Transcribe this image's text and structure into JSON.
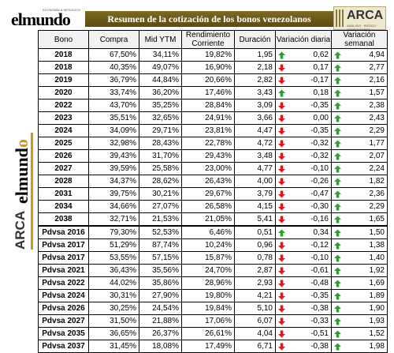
{
  "header": {
    "logo_left": "elmundo",
    "logo_left_sub": "ECONOMÍA & NEGOCIOS",
    "title": "Resumen de la cotización de los bonos venezolanos",
    "logo_right": "ARCA",
    "logo_right_sub": "ANÁLISIS · RIESGO · CONSULTORES"
  },
  "side_logo": {
    "arca": "ARCA",
    "mundo_prefix": "elmund",
    "mundo_o": "o"
  },
  "columns": {
    "bono": "Bono",
    "compra": "Compra",
    "mid_ytm": "Mid YTM",
    "rendimiento": "Rendimiento Corriente",
    "duracion": "Duración",
    "variacion_diaria": "Variación diaria",
    "variacion_semanal": "Variación semanal"
  },
  "colors": {
    "up": "#2aa12a",
    "down": "#d81c1c",
    "banner": "#6b5a18",
    "accent": "#c69a1a"
  },
  "rows": [
    {
      "bono": "2018",
      "compra": "67,50%",
      "mid": "34,11%",
      "rend": "19,82%",
      "dur": "1,95",
      "dia": "0,62",
      "dia_dir": "up",
      "sem": "4,94",
      "sem_dir": "up"
    },
    {
      "bono": "2018",
      "compra": "40,35%",
      "mid": "49,07%",
      "rend": "16,90%",
      "dur": "2,18",
      "dia": "0,17",
      "dia_dir": "down",
      "sem": "2,77",
      "sem_dir": "up"
    },
    {
      "bono": "2019",
      "compra": "36,79%",
      "mid": "44,84%",
      "rend": "20,66%",
      "dur": "2,82",
      "dia": "-0,17",
      "dia_dir": "down",
      "sem": "2,16",
      "sem_dir": "up"
    },
    {
      "bono": "2020",
      "compra": "33,74%",
      "mid": "36,20%",
      "rend": "17,46%",
      "dur": "3,43",
      "dia": "0,18",
      "dia_dir": "up",
      "sem": "1,57",
      "sem_dir": "up"
    },
    {
      "bono": "2022",
      "compra": "43,70%",
      "mid": "35,25%",
      "rend": "28,84%",
      "dur": "3,09",
      "dia": "-0,35",
      "dia_dir": "down",
      "sem": "2,38",
      "sem_dir": "up"
    },
    {
      "bono": "2023",
      "compra": "35,51%",
      "mid": "32,65%",
      "rend": "24,91%",
      "dur": "3,66",
      "dia": "0,00",
      "dia_dir": "down",
      "sem": "2,43",
      "sem_dir": "up"
    },
    {
      "bono": "2024",
      "compra": "34,09%",
      "mid": "29,71%",
      "rend": "23,81%",
      "dur": "4,47",
      "dia": "-0,35",
      "dia_dir": "down",
      "sem": "2,29",
      "sem_dir": "up"
    },
    {
      "bono": "2025",
      "compra": "32,98%",
      "mid": "28,43%",
      "rend": "22,78%",
      "dur": "4,72",
      "dia": "-0,32",
      "dia_dir": "down",
      "sem": "1,77",
      "sem_dir": "up"
    },
    {
      "bono": "2026",
      "compra": "39,43%",
      "mid": "31,70%",
      "rend": "29,43%",
      "dur": "3,48",
      "dia": "-0,32",
      "dia_dir": "down",
      "sem": "2,07",
      "sem_dir": "up"
    },
    {
      "bono": "2027",
      "compra": "39,59%",
      "mid": "25,58%",
      "rend": "23,00%",
      "dur": "4,77",
      "dia": "-0,10",
      "dia_dir": "down",
      "sem": "2,24",
      "sem_dir": "up"
    },
    {
      "bono": "2028",
      "compra": "34,37%",
      "mid": "28,62%",
      "rend": "26,43%",
      "dur": "4,00",
      "dia": "-0,26",
      "dia_dir": "down",
      "sem": "1,82",
      "sem_dir": "up"
    },
    {
      "bono": "2031",
      "compra": "39,75%",
      "mid": "30,21%",
      "rend": "29,67%",
      "dur": "3,79",
      "dia": "-0,47",
      "dia_dir": "down",
      "sem": "2,36",
      "sem_dir": "up"
    },
    {
      "bono": "2034",
      "compra": "34,66%",
      "mid": "27,07%",
      "rend": "26,58%",
      "dur": "4,15",
      "dia": "-0,30",
      "dia_dir": "down",
      "sem": "2,29",
      "sem_dir": "up"
    },
    {
      "bono": "2038",
      "compra": "32,71%",
      "mid": "21,53%",
      "rend": "21,05%",
      "dur": "5,41",
      "dia": "-0,16",
      "dia_dir": "down",
      "sem": "1,65",
      "sem_dir": "up"
    },
    {
      "bono": "Pdvsa 2016",
      "compra": "79,30%",
      "mid": "52,53%",
      "rend": "6,46%",
      "dur": "0,51",
      "dia": "0,34",
      "dia_dir": "up",
      "sem": "1,50",
      "sem_dir": "up"
    },
    {
      "bono": "Pdvsa 2017",
      "compra": "51,29%",
      "mid": "87,74%",
      "rend": "10,24%",
      "dur": "0,96",
      "dia": "-0,12",
      "dia_dir": "down",
      "sem": "1,38",
      "sem_dir": "up"
    },
    {
      "bono": "Pdvsa 2017",
      "compra": "53,55%",
      "mid": "57,15%",
      "rend": "15,87%",
      "dur": "0,78",
      "dia": "-0,10",
      "dia_dir": "down",
      "sem": "1,40",
      "sem_dir": "up"
    },
    {
      "bono": "Pdvsa 2021",
      "compra": "36,43%",
      "mid": "35,56%",
      "rend": "24,70%",
      "dur": "2,87",
      "dia": "-0,61",
      "dia_dir": "down",
      "sem": "1,92",
      "sem_dir": "up"
    },
    {
      "bono": "Pdvsa 2022",
      "compra": "44,02%",
      "mid": "35,86%",
      "rend": "28,96%",
      "dur": "2,93",
      "dia": "-0,48",
      "dia_dir": "down",
      "sem": "1,69",
      "sem_dir": "up"
    },
    {
      "bono": "Pdvsa 2024",
      "compra": "30,31%",
      "mid": "27,90%",
      "rend": "19,80%",
      "dur": "4,21",
      "dia": "-0,35",
      "dia_dir": "down",
      "sem": "1,89",
      "sem_dir": "up"
    },
    {
      "bono": "Pdvsa 2026",
      "compra": "30,25%",
      "mid": "24,54%",
      "rend": "19,84%",
      "dur": "5,10",
      "dia": "-0,38",
      "dia_dir": "down",
      "sem": "1,90",
      "sem_dir": "up"
    },
    {
      "bono": "Pdvsa 2027",
      "compra": "31,50%",
      "mid": "21,88%",
      "rend": "17,06%",
      "dur": "6,07",
      "dia": "-0,33",
      "dia_dir": "down",
      "sem": "1,93",
      "sem_dir": "up"
    },
    {
      "bono": "Pdvsa 2035",
      "compra": "36,65%",
      "mid": "26,37%",
      "rend": "26,61%",
      "dur": "4,04",
      "dia": "-0,51",
      "dia_dir": "down",
      "sem": "1,52",
      "sem_dir": "up"
    },
    {
      "bono": "Pdvsa 2037",
      "compra": "31,45%",
      "mid": "18,08%",
      "rend": "17,49%",
      "dur": "6,71",
      "dia": "-0,38",
      "dia_dir": "down",
      "sem": "1,98",
      "sem_dir": "up"
    }
  ]
}
